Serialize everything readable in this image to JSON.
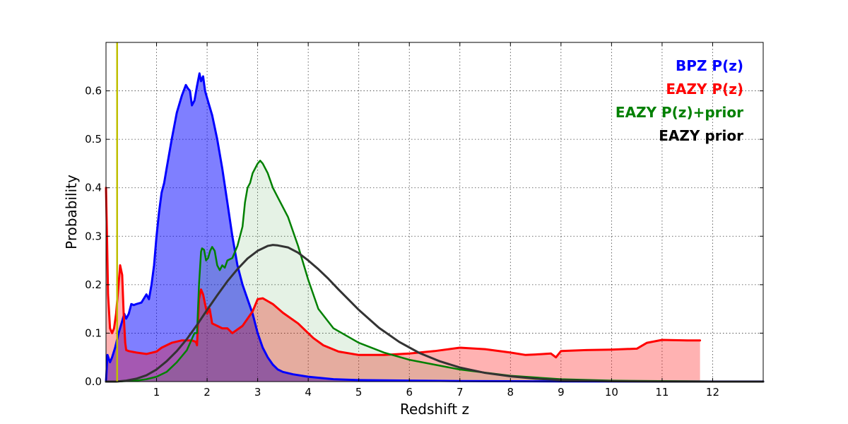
{
  "chart_data": {
    "type": "area",
    "title": "",
    "xlabel": "Redshift z",
    "ylabel": "Probability",
    "xlim": [
      0,
      13
    ],
    "ylim": [
      0,
      0.7
    ],
    "xticks": [
      1,
      2,
      3,
      4,
      5,
      6,
      7,
      8,
      9,
      10,
      11,
      12
    ],
    "yticks": [
      0.0,
      0.1,
      0.2,
      0.3,
      0.4,
      0.5,
      0.6
    ],
    "grid": true,
    "legend_position": "top-right",
    "vertical_marker": {
      "x": 0.22,
      "color": "#bfbf00"
    },
    "series": [
      {
        "name": "BPZ P(z)",
        "color": "#0000ff",
        "fill": "#0000ff",
        "fill_opacity": 0.5,
        "line_width": 3,
        "x": [
          0,
          0.03,
          0.08,
          0.12,
          0.18,
          0.25,
          0.32,
          0.36,
          0.4,
          0.45,
          0.5,
          0.55,
          0.6,
          0.7,
          0.8,
          0.85,
          0.9,
          0.95,
          1.0,
          1.05,
          1.1,
          1.15,
          1.2,
          1.3,
          1.4,
          1.5,
          1.58,
          1.62,
          1.66,
          1.7,
          1.75,
          1.8,
          1.85,
          1.88,
          1.92,
          1.96,
          2.0,
          2.1,
          2.2,
          2.3,
          2.4,
          2.5,
          2.6,
          2.7,
          2.8,
          2.9,
          3.0,
          3.1,
          3.2,
          3.3,
          3.4,
          3.5,
          3.7,
          4.0,
          4.5,
          5.0,
          6.0,
          7.0,
          9.0,
          11.0,
          13.0
        ],
        "values": [
          0,
          0.055,
          0.04,
          0.05,
          0.07,
          0.1,
          0.125,
          0.14,
          0.13,
          0.14,
          0.16,
          0.158,
          0.16,
          0.163,
          0.18,
          0.17,
          0.2,
          0.24,
          0.3,
          0.35,
          0.39,
          0.41,
          0.44,
          0.5,
          0.555,
          0.59,
          0.612,
          0.605,
          0.6,
          0.57,
          0.58,
          0.61,
          0.636,
          0.62,
          0.63,
          0.6,
          0.585,
          0.55,
          0.5,
          0.44,
          0.37,
          0.3,
          0.24,
          0.2,
          0.17,
          0.14,
          0.1,
          0.07,
          0.05,
          0.035,
          0.025,
          0.02,
          0.015,
          0.01,
          0.005,
          0.003,
          0.002,
          0.001,
          0.0005,
          0.0002,
          0.0001
        ]
      },
      {
        "name": "EAZY P(z)",
        "color": "#ff0000",
        "fill": "#ff0000",
        "fill_opacity": 0.3,
        "line_width": 3,
        "x": [
          0,
          0.02,
          0.04,
          0.08,
          0.12,
          0.16,
          0.2,
          0.24,
          0.28,
          0.32,
          0.35,
          0.38,
          0.4,
          0.45,
          0.6,
          0.8,
          1.0,
          1.1,
          1.3,
          1.5,
          1.7,
          1.78,
          1.8,
          1.84,
          1.88,
          1.92,
          1.96,
          2.0,
          2.05,
          2.1,
          2.2,
          2.3,
          2.4,
          2.5,
          2.7,
          2.9,
          3.0,
          3.1,
          3.3,
          3.5,
          3.8,
          4.1,
          4.3,
          4.6,
          5.0,
          5.5,
          6.0,
          6.5,
          7.0,
          7.5,
          8.0,
          8.3,
          8.5,
          8.8,
          8.9,
          9.0,
          9.5,
          10.0,
          10.5,
          10.7,
          11.0,
          11.5,
          11.75
        ],
        "values": [
          0.4,
          0.3,
          0.18,
          0.11,
          0.1,
          0.11,
          0.14,
          0.19,
          0.24,
          0.22,
          0.14,
          0.08,
          0.065,
          0.063,
          0.06,
          0.057,
          0.062,
          0.07,
          0.08,
          0.085,
          0.085,
          0.082,
          0.075,
          0.17,
          0.19,
          0.18,
          0.16,
          0.14,
          0.15,
          0.12,
          0.115,
          0.11,
          0.11,
          0.1,
          0.115,
          0.145,
          0.17,
          0.172,
          0.16,
          0.142,
          0.12,
          0.09,
          0.075,
          0.062,
          0.055,
          0.055,
          0.058,
          0.063,
          0.07,
          0.067,
          0.06,
          0.055,
          0.056,
          0.058,
          0.05,
          0.063,
          0.065,
          0.066,
          0.068,
          0.08,
          0.086,
          0.085,
          0.085
        ]
      },
      {
        "name": "EAZY P(z)+prior",
        "color": "#008000",
        "fill": "#008000",
        "fill_opacity": 0.1,
        "line_width": 2.5,
        "x": [
          0,
          0.2,
          0.4,
          0.6,
          0.8,
          1.0,
          1.2,
          1.4,
          1.6,
          1.75,
          1.8,
          1.84,
          1.88,
          1.9,
          1.94,
          1.98,
          2.02,
          2.06,
          2.1,
          2.15,
          2.2,
          2.25,
          2.3,
          2.35,
          2.4,
          2.5,
          2.6,
          2.7,
          2.75,
          2.8,
          2.85,
          2.9,
          3.0,
          3.05,
          3.1,
          3.2,
          3.3,
          3.4,
          3.6,
          3.8,
          4.0,
          4.2,
          4.5,
          5.0,
          5.5,
          6.0,
          7.0,
          8.0,
          9.0,
          10.0,
          11.0,
          12.0,
          13.0
        ],
        "values": [
          0,
          0,
          0.001,
          0.002,
          0.005,
          0.01,
          0.02,
          0.04,
          0.065,
          0.1,
          0.1,
          0.2,
          0.268,
          0.275,
          0.272,
          0.25,
          0.255,
          0.27,
          0.278,
          0.27,
          0.24,
          0.23,
          0.24,
          0.235,
          0.25,
          0.255,
          0.28,
          0.32,
          0.37,
          0.4,
          0.41,
          0.43,
          0.45,
          0.456,
          0.45,
          0.43,
          0.4,
          0.38,
          0.34,
          0.28,
          0.21,
          0.15,
          0.11,
          0.08,
          0.06,
          0.045,
          0.025,
          0.012,
          0.005,
          0.002,
          0.001,
          0.0005,
          0.0002
        ]
      },
      {
        "name": "EAZY prior",
        "color": "#333333",
        "fill": "none",
        "fill_opacity": 0,
        "line_width": 3,
        "x": [
          0,
          0.2,
          0.4,
          0.6,
          0.8,
          1.0,
          1.2,
          1.4,
          1.6,
          1.8,
          2.0,
          2.2,
          2.4,
          2.6,
          2.8,
          3.0,
          3.2,
          3.3,
          3.4,
          3.6,
          3.8,
          4.0,
          4.2,
          4.4,
          4.6,
          4.8,
          5.0,
          5.4,
          5.8,
          6.2,
          6.6,
          7.0,
          7.5,
          8.0,
          8.5,
          9.0,
          9.5,
          10.0,
          11.0,
          12.0,
          13.0
        ],
        "values": [
          0,
          0,
          0.002,
          0.006,
          0.013,
          0.025,
          0.042,
          0.063,
          0.088,
          0.117,
          0.148,
          0.178,
          0.207,
          0.232,
          0.254,
          0.27,
          0.28,
          0.282,
          0.281,
          0.277,
          0.266,
          0.25,
          0.232,
          0.212,
          0.19,
          0.169,
          0.148,
          0.111,
          0.082,
          0.059,
          0.042,
          0.029,
          0.018,
          0.011,
          0.006,
          0.003,
          0.0017,
          0.0008,
          0.0002,
          5e-05,
          0
        ]
      }
    ],
    "legend": [
      {
        "label": "BPZ P(z)",
        "color": "#0000ff"
      },
      {
        "label": "EAZY P(z)",
        "color": "#ff0000"
      },
      {
        "label": "EAZY P(z)+prior",
        "color": "#008000"
      },
      {
        "label": "EAZY prior",
        "color": "#000000"
      }
    ]
  }
}
